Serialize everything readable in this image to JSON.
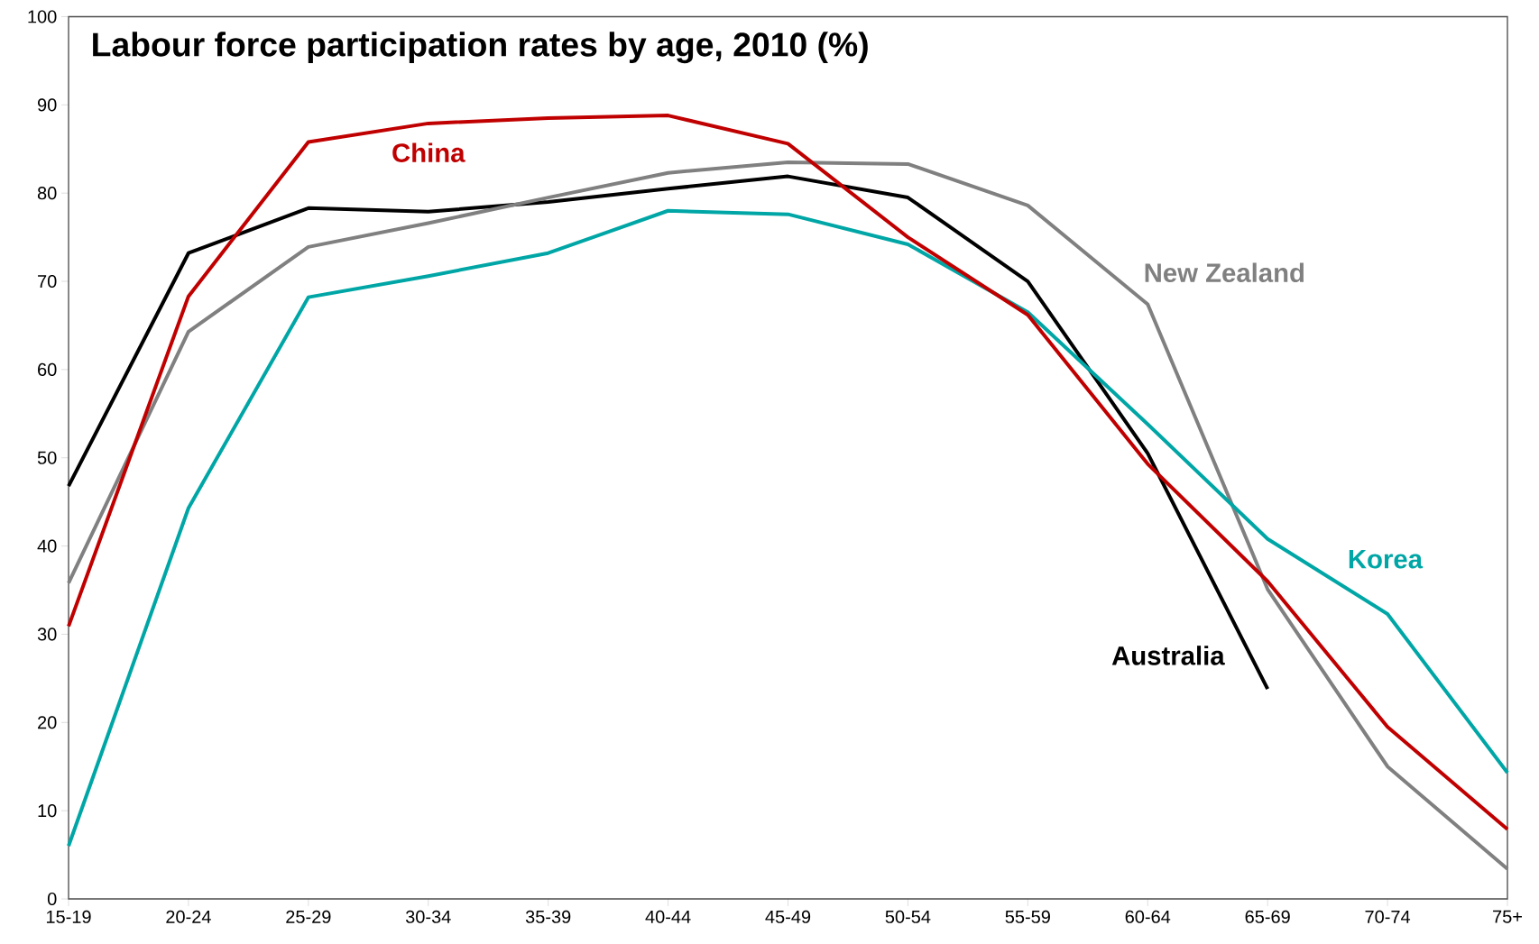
{
  "chart_data": {
    "type": "line",
    "title": "Labour force participation rates by age, 2010 (%)",
    "categories": [
      "15-19",
      "20-24",
      "25-29",
      "30-34",
      "35-39",
      "40-44",
      "45-49",
      "50-54",
      "55-59",
      "60-64",
      "65-69",
      "70-74",
      "75+"
    ],
    "series": [
      {
        "name": "Australia",
        "color": "#000000",
        "values": [
          46.8,
          73.2,
          78.3,
          77.9,
          79,
          80.5,
          81.9,
          79.5,
          70,
          50.5,
          23.8,
          null,
          null
        ]
      },
      {
        "name": "New Zealand",
        "color": "#808080",
        "values": [
          35.8,
          64.3,
          73.9,
          76.6,
          79.5,
          82.3,
          83.5,
          83.3,
          78.6,
          67.4,
          35.1,
          15,
          3.4
        ]
      },
      {
        "name": "Korea",
        "color": "#00a6a6",
        "values": [
          6,
          44.3,
          68.2,
          70.6,
          73.2,
          78,
          77.6,
          74.2,
          66.5,
          53.8,
          40.8,
          32.3,
          14.3
        ]
      },
      {
        "name": "China",
        "color": "#c00000",
        "values": [
          30.9,
          68.3,
          85.8,
          87.9,
          88.5,
          88.8,
          85.6,
          75,
          66.2,
          49.3,
          36,
          19.5,
          7.9
        ]
      }
    ],
    "ylim": [
      0,
      100
    ],
    "yticks": [
      0,
      10,
      20,
      30,
      40,
      50,
      60,
      70,
      80,
      90,
      100
    ],
    "grid": false,
    "legend": false
  }
}
